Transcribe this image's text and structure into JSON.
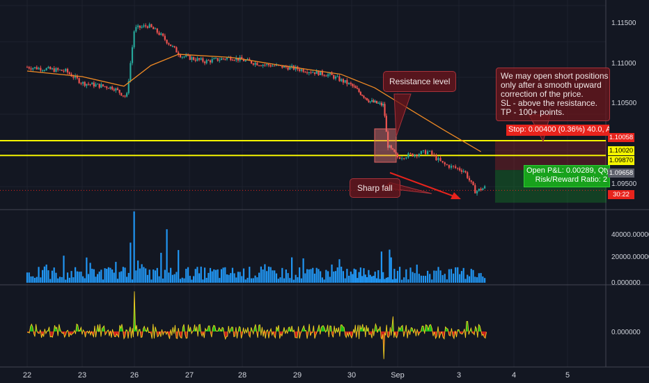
{
  "chart_data": {
    "type": "candlestick",
    "x_ticks": [
      "22",
      "23",
      "26",
      "27",
      "28",
      "29",
      "30",
      "Sep",
      "3",
      "4",
      "5"
    ],
    "price_axis": {
      "ticks": [
        "1.11500",
        "1.11000",
        "1.10500",
        "1.09500"
      ],
      "range": [
        1.0922,
        1.1175
      ],
      "badges": [
        {
          "label": "1.10058",
          "value": 1.10058,
          "color": "#e8231c",
          "text_color": "#ffffff"
        },
        {
          "label": "1.10020",
          "value": 1.1002,
          "color": "#f5f500",
          "text_color": "#000000"
        },
        {
          "label": "1.09870",
          "value": 1.0987,
          "color": "#f5f500",
          "text_color": "#000000"
        },
        {
          "label": "1.09658",
          "value": 1.09658,
          "color": "#5d606b",
          "text_color": "#ffffff"
        },
        {
          "label": "30:22",
          "value": 1.09435,
          "color": "#e8231c",
          "text_color": "#ffffff"
        }
      ]
    },
    "price_path": [
      {
        "x": 0,
        "y": 1.1098
      },
      {
        "x": 0.7,
        "y": 1.1093
      },
      {
        "x": 1.0,
        "y": 1.1078
      },
      {
        "x": 1.6,
        "y": 1.1072
      },
      {
        "x": 1.85,
        "y": 1.106
      },
      {
        "x": 2.0,
        "y": 1.1146
      },
      {
        "x": 2.25,
        "y": 1.115
      },
      {
        "x": 2.45,
        "y": 1.114
      },
      {
        "x": 2.85,
        "y": 1.1112
      },
      {
        "x": 3.3,
        "y": 1.1105
      },
      {
        "x": 3.8,
        "y": 1.111
      },
      {
        "x": 4.3,
        "y": 1.1102
      },
      {
        "x": 4.9,
        "y": 1.1097
      },
      {
        "x": 5.6,
        "y": 1.1088
      },
      {
        "x": 6.0,
        "y": 1.1075
      },
      {
        "x": 6.4,
        "y": 1.1055
      },
      {
        "x": 6.7,
        "y": 1.105
      },
      {
        "x": 6.78,
        "y": 1.1
      },
      {
        "x": 7.0,
        "y": 1.0985
      },
      {
        "x": 7.5,
        "y": 1.0992
      },
      {
        "x": 7.75,
        "y": 1.0976
      },
      {
        "x": 8.1,
        "y": 1.0968
      },
      {
        "x": 8.3,
        "y": 1.0942
      },
      {
        "x": 8.5,
        "y": 1.0948
      }
    ],
    "moving_average": [
      {
        "x": 0,
        "y": 1.1093
      },
      {
        "x": 1.0,
        "y": 1.1086
      },
      {
        "x": 1.8,
        "y": 1.1074
      },
      {
        "x": 2.3,
        "y": 1.11
      },
      {
        "x": 2.8,
        "y": 1.1114
      },
      {
        "x": 3.8,
        "y": 1.111
      },
      {
        "x": 4.8,
        "y": 1.1099
      },
      {
        "x": 5.8,
        "y": 1.1089
      },
      {
        "x": 6.5,
        "y": 1.1072
      },
      {
        "x": 7.2,
        "y": 1.1045
      },
      {
        "x": 7.8,
        "y": 1.1017
      },
      {
        "x": 8.4,
        "y": 1.0992
      }
    ],
    "horizontal_lines": [
      1.10058,
      1.1002
    ],
    "volume": {
      "ticks": [
        "40000.00000",
        "20000.00000",
        "0.000000"
      ],
      "range": [
        0,
        45000
      ],
      "spikes": [
        {
          "x": 2.0,
          "v": 50000
        },
        {
          "x": 1.93,
          "v": 27000
        },
        {
          "x": 2.6,
          "v": 36000
        },
        {
          "x": 2.8,
          "v": 22000
        },
        {
          "x": 6.65,
          "v": 21000
        }
      ]
    },
    "oscillator": {
      "ticks": [
        "0.000000"
      ],
      "spikes": [
        {
          "x": 2.0,
          "v": 3.2
        },
        {
          "x": 6.7,
          "v": -2.2
        },
        {
          "x": 6.9,
          "v": 1.2
        },
        {
          "x": 8.15,
          "v": 0.8
        }
      ]
    }
  },
  "annotations": {
    "note_lines": [
      "We may open short positions",
      "only after a smooth upward",
      "correction of the price.",
      "SL - above the resistance.",
      "TP - 100+ points."
    ],
    "resistance_label": "Resistance level",
    "fall_label": "Sharp fall",
    "stop_text": "Stop: 0.00400 (0.36%) 40.0, A",
    "pnl_line1": "Open P&L: 0.00289, Qty:",
    "pnl_line2": "Risk/Reward Ratio: 2"
  }
}
